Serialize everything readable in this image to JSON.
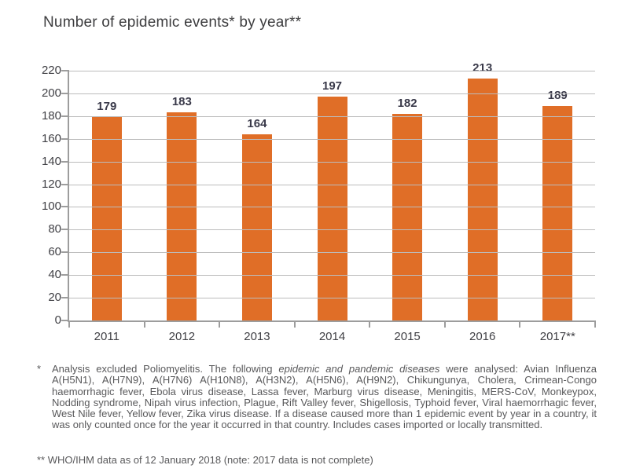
{
  "page": {
    "title": "Number of epidemic events* by year**"
  },
  "chart_data": {
    "type": "bar",
    "title": "Number of epidemic events* by year**",
    "categories": [
      "2011",
      "2012",
      "2013",
      "2014",
      "2015",
      "2016",
      "2017**"
    ],
    "values": [
      179,
      183,
      164,
      197,
      182,
      213,
      189
    ],
    "xlabel": "",
    "ylabel": "",
    "ylim": [
      0,
      220
    ],
    "ytick_step": 20,
    "yticks": [
      0,
      20,
      40,
      60,
      80,
      100,
      120,
      140,
      160,
      180,
      200,
      220
    ],
    "grid": true,
    "legend": false,
    "bar_color": "#e06e27"
  },
  "footnotes": {
    "note1_marker": "*",
    "note1_text_before_italic": "Analysis excluded Poliomyelitis. The following ",
    "note1_italic_phrase": "epidemic and pandemic diseases",
    "note1_text_after_italic": " were analysed: Avian Influenza A(H5N1), A(H7N9), A(H7N6) A(H10N8), A(H3N2), A(H5N6), A(H9N2), Chikungunya, Cholera, Crimean-Congo haemorrhagic fever, Ebola virus disease, Lassa fever, Marburg virus disease, Meningitis, MERS-CoV, Monkeypox, Nodding syndrome, Nipah virus infection, Plague, Rift Valley fever, Shigellosis, Typhoid fever, Viral haemorrhagic fever, West Nile fever, Yellow fever, Zika virus disease. If a disease caused more than 1 epidemic event by year in a country, it was only counted once for the year it occurred in that country. Includes cases imported or locally transmitted.",
    "note2": "** WHO/IHM data as of 12 January 2018 (note: 2017 data is not complete)"
  },
  "colors": {
    "bar": "#e06e27",
    "axis": "#9d9d9d",
    "gridline": "#bcbcbc",
    "title_text": "#3d3d3f",
    "value_label": "#3a3a4a",
    "tick_label": "#404045",
    "footnote_text": "#58585a"
  }
}
